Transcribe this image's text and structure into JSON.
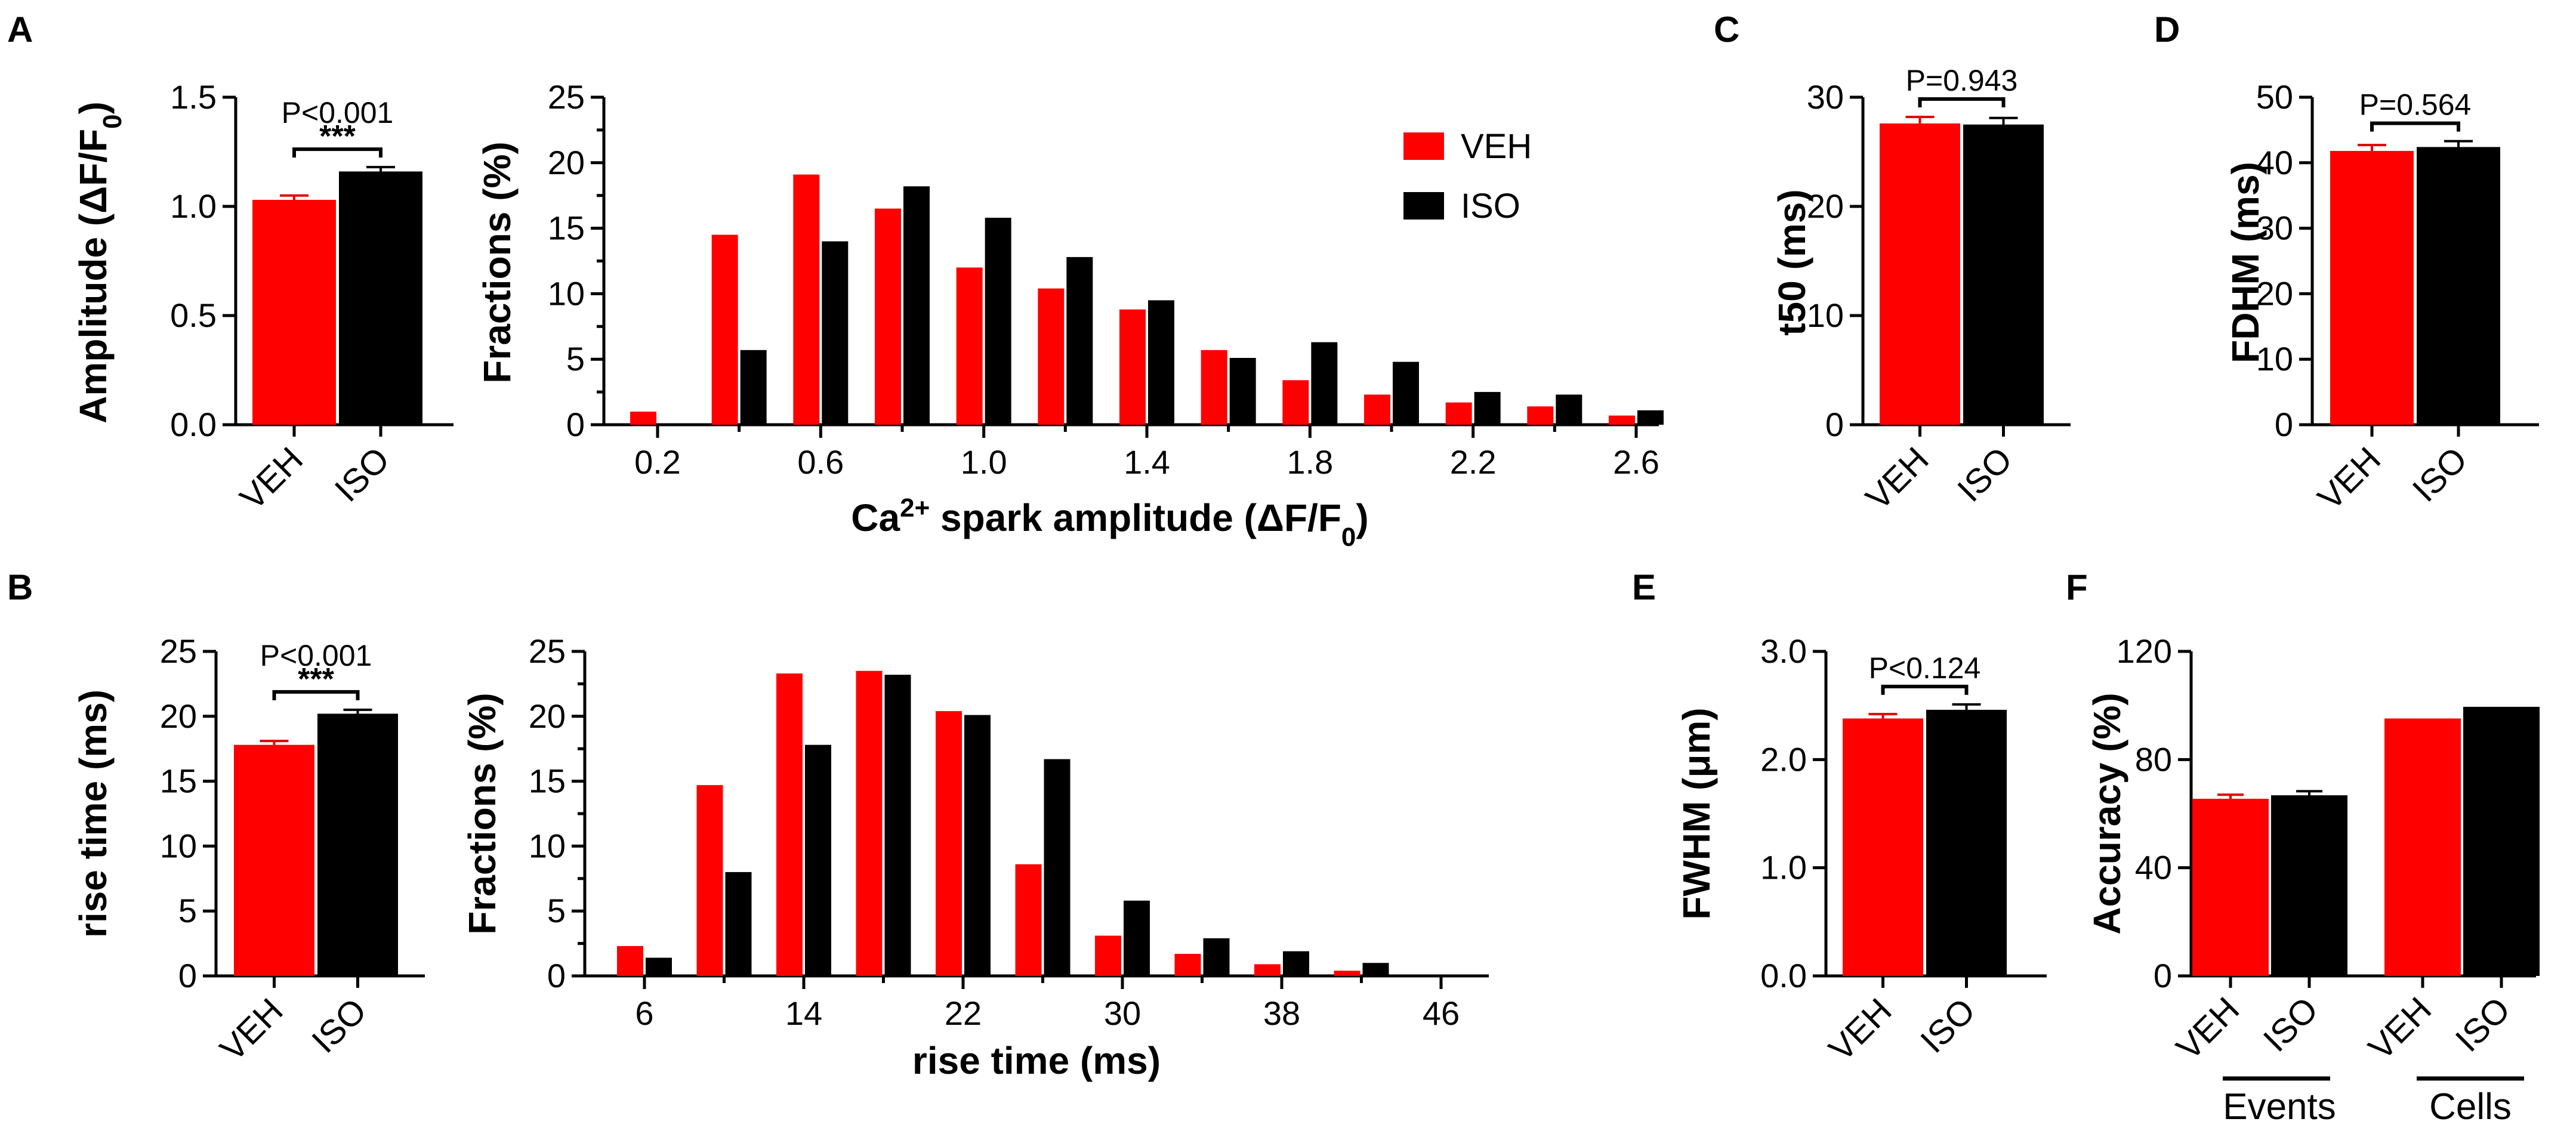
{
  "colors": {
    "veh": "#ff0000",
    "iso": "#000000"
  },
  "chart_data": [
    {
      "panel": "A",
      "type": "bar",
      "ylabel": "Amplitude (ΔF/F0)",
      "categories": [
        "VEH",
        "ISO"
      ],
      "values": [
        1.03,
        1.16
      ],
      "errors": [
        0.02,
        0.02
      ],
      "ylim": [
        0,
        1.5
      ],
      "yticks": [
        "0.0",
        "0.5",
        "1.0",
        "1.5"
      ],
      "pvalue": "P<0.001",
      "significance": "***"
    },
    {
      "panel": "A2",
      "type": "bar",
      "ylabel": "Fractions (%)",
      "xlabel": "Ca2+ spark amplitude (ΔF/F0)",
      "x": [
        0.2,
        0.4,
        0.6,
        0.8,
        1.0,
        1.2,
        1.4,
        1.6,
        1.8,
        2.0,
        2.2,
        2.4,
        2.6
      ],
      "xticks": [
        "0.2",
        "0.6",
        "1.0",
        "1.4",
        "1.8",
        "2.2",
        "2.6"
      ],
      "ylim": [
        0,
        25
      ],
      "yticks": [
        "0",
        "5",
        "10",
        "15",
        "20",
        "25"
      ],
      "legend": [
        "VEH",
        "ISO"
      ],
      "series": [
        {
          "name": "VEH",
          "values": [
            1.0,
            14.5,
            19.1,
            16.5,
            12.0,
            10.4,
            8.8,
            5.7,
            3.4,
            2.3,
            1.7,
            1.4,
            0.7
          ]
        },
        {
          "name": "ISO",
          "values": [
            0,
            5.7,
            14.0,
            18.2,
            15.8,
            12.8,
            9.5,
            5.1,
            6.3,
            4.8,
            2.5,
            2.3,
            1.1
          ]
        }
      ]
    },
    {
      "panel": "B",
      "type": "bar",
      "ylabel": "rise time (ms)",
      "categories": [
        "VEH",
        "ISO"
      ],
      "values": [
        17.8,
        20.2
      ],
      "errors": [
        0.3,
        0.3
      ],
      "ylim": [
        0,
        25
      ],
      "yticks": [
        "0",
        "5",
        "10",
        "15",
        "20",
        "25"
      ],
      "pvalue": "P<0.001",
      "significance": "***"
    },
    {
      "panel": "B2",
      "type": "bar",
      "ylabel": "Fractions (%)",
      "xlabel": "rise time (ms)",
      "x": [
        6,
        10,
        14,
        18,
        22,
        26,
        30,
        34,
        38,
        42,
        46
      ],
      "xticks": [
        "6",
        "14",
        "22",
        "30",
        "38",
        "46"
      ],
      "ylim": [
        0,
        25
      ],
      "yticks": [
        "0",
        "5",
        "10",
        "15",
        "20",
        "25"
      ],
      "series": [
        {
          "name": "VEH",
          "values": [
            2.3,
            14.7,
            23.3,
            23.5,
            20.4,
            8.6,
            3.1,
            1.7,
            0.9,
            0.4,
            0
          ]
        },
        {
          "name": "ISO",
          "values": [
            1.4,
            8.0,
            17.8,
            23.2,
            20.1,
            16.7,
            5.8,
            2.9,
            1.9,
            1.0,
            0
          ]
        }
      ]
    },
    {
      "panel": "C",
      "type": "bar",
      "ylabel": "t50 (ms)",
      "categories": [
        "VEH",
        "ISO"
      ],
      "values": [
        27.6,
        27.5
      ],
      "errors": [
        0.6,
        0.6
      ],
      "ylim": [
        0,
        30
      ],
      "yticks": [
        "0",
        "10",
        "20",
        "30"
      ],
      "pvalue": "P=0.943"
    },
    {
      "panel": "D",
      "type": "bar",
      "ylabel": "FDHM (ms)",
      "categories": [
        "VEH",
        "ISO"
      ],
      "values": [
        41.8,
        42.4
      ],
      "errors": [
        0.9,
        0.9
      ],
      "ylim": [
        0,
        50
      ],
      "yticks": [
        "0",
        "10",
        "20",
        "30",
        "40",
        "50"
      ],
      "pvalue": "P=0.564"
    },
    {
      "panel": "E",
      "type": "bar",
      "ylabel": "FWHM (μm)",
      "categories": [
        "VEH",
        "ISO"
      ],
      "values": [
        2.38,
        2.46
      ],
      "errors": [
        0.04,
        0.05
      ],
      "ylim": [
        0,
        3.0
      ],
      "yticks": [
        "0.0",
        "1.0",
        "2.0",
        "3.0"
      ],
      "pvalue": "P<0.124"
    },
    {
      "panel": "F",
      "type": "bar",
      "ylabel": "Accuracy (%)",
      "groups": [
        "Events",
        "Cells"
      ],
      "categories": [
        "VEH",
        "ISO",
        "VEH",
        "ISO"
      ],
      "values": [
        65.5,
        66.8,
        95.2,
        99.5
      ],
      "errors": [
        1.5,
        1.5,
        0,
        0
      ],
      "ylim": [
        0,
        120
      ],
      "yticks": [
        "0",
        "40",
        "80",
        "120"
      ]
    }
  ]
}
